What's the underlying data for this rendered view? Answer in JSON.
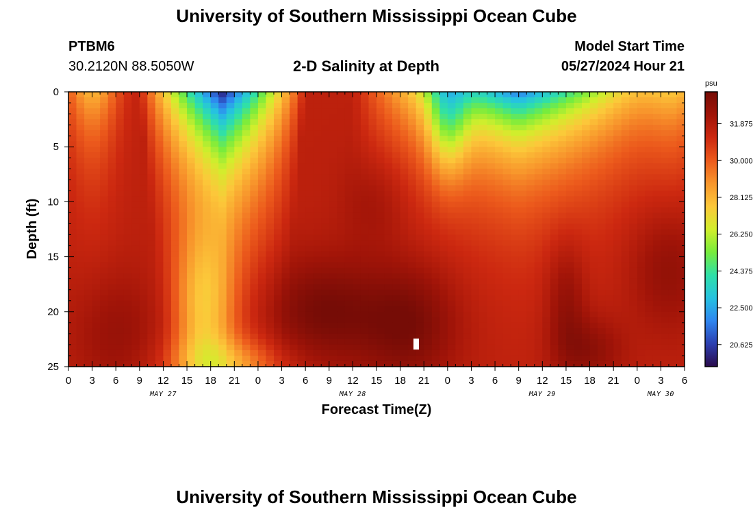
{
  "header": {
    "title": "University of Southern Mississippi Ocean Cube",
    "station_id": "PTBM6",
    "coords": "30.2120N  88.5050W",
    "subtitle": "2-D Salinity at Depth",
    "model_start_label": "Model Start Time",
    "model_start_value": "05/27/2024 Hour 21"
  },
  "footer": {
    "title": "University of Southern Mississippi Ocean Cube"
  },
  "colors": {
    "scale": [
      "#2a0a4a",
      "#2c3fb0",
      "#2f86f0",
      "#26c2e0",
      "#2fe0a8",
      "#78ec3c",
      "#d2ee2c",
      "#fcc83a",
      "#f8962c",
      "#ec5a1c",
      "#cc2810",
      "#a01408",
      "#760c06"
    ]
  },
  "chart_data": {
    "type": "heatmap",
    "title": "2-D Salinity at Depth",
    "xlabel": "Forecast Time(Z)",
    "ylabel": "Depth (ft)",
    "x_ticks": [
      "0",
      "3",
      "6",
      "9",
      "12",
      "15",
      "18",
      "21",
      "0",
      "3",
      "6",
      "9",
      "12",
      "15",
      "18",
      "21",
      "0",
      "3",
      "6",
      "9",
      "12",
      "15",
      "18",
      "21",
      "0",
      "3",
      "6"
    ],
    "x_range_hours": [
      0,
      78
    ],
    "date_labels": [
      {
        "text": "MAY 27",
        "hour": 12
      },
      {
        "text": "MAY 28",
        "hour": 36
      },
      {
        "text": "MAY 29",
        "hour": 60
      },
      {
        "text": "MAY 30",
        "hour": 75
      }
    ],
    "y_ticks": [
      "0",
      "5",
      "10",
      "15",
      "20",
      "25"
    ],
    "y_range_ft": [
      0,
      25
    ],
    "colorbar": {
      "unit": "psu",
      "range": [
        19.5,
        33.5
      ],
      "tick_labels": [
        "31.875",
        "30.000",
        "28.125",
        "26.250",
        "24.375",
        "22.500",
        "20.625"
      ]
    },
    "salinity_features": [
      {
        "kind": "fresh core",
        "center_hour": 19.5,
        "center_depth_ft": 0,
        "value_psu": 19.8
      },
      {
        "kind": "fresh lens",
        "center_hour": 57,
        "center_depth_ft": 0,
        "value_psu": 21.0
      },
      {
        "kind": "salty core",
        "center_hour": 32,
        "center_depth_ft": 20,
        "value_psu": 33.3
      },
      {
        "kind": "salty core",
        "center_hour": 43,
        "center_depth_ft": 21,
        "value_psu": 33.4
      },
      {
        "kind": "salty core",
        "center_hour": 63,
        "center_depth_ft": 19,
        "value_psu": 32.8
      },
      {
        "kind": "salty core",
        "center_hour": 76,
        "center_depth_ft": 16,
        "value_psu": 32.8
      }
    ]
  }
}
